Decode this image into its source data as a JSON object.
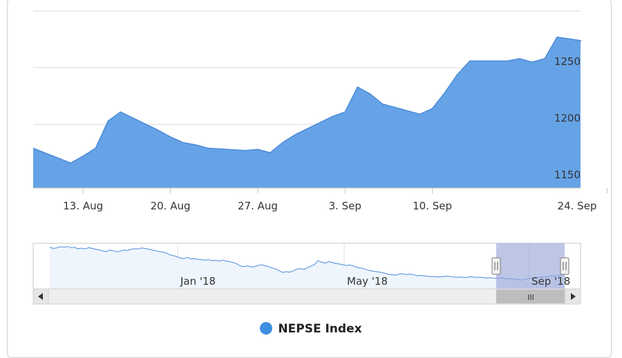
{
  "colors": {
    "series_fill": "#66a3e6",
    "series_line": "#4a8ad8",
    "navigator_fill": "#eef5fc",
    "navigator_line": "#4a8ad8",
    "mask": "#9aa8d9"
  },
  "chart_data": {
    "type": "area",
    "title": "",
    "xlabel": "",
    "ylabel": "",
    "y_axis_position": "right",
    "grid": true,
    "ylim": [
      1150,
      1260
    ],
    "ytick_labels": [
      "1150",
      "1200",
      "1250"
    ],
    "xtick_labels": [
      "13. Aug",
      "20. Aug",
      "27. Aug",
      "3. Sep",
      "10. Sep",
      "24. Sep"
    ],
    "series": [
      {
        "name": "NEPSE Index",
        "x": [
          "2018-08-09",
          "2018-08-12",
          "2018-08-13",
          "2018-08-14",
          "2018-08-15",
          "2018-08-16",
          "2018-08-19",
          "2018-08-20",
          "2018-08-21",
          "2018-08-22",
          "2018-08-23",
          "2018-08-26",
          "2018-08-27",
          "2018-08-28",
          "2018-08-29",
          "2018-08-30",
          "2018-09-02",
          "2018-09-03",
          "2018-09-04",
          "2018-09-05",
          "2018-09-06",
          "2018-09-09",
          "2018-09-10",
          "2018-09-11",
          "2018-09-12",
          "2018-09-13",
          "2018-09-16",
          "2018-09-17",
          "2018-09-18",
          "2018-09-19",
          "2018-09-20",
          "2018-09-23",
          "2018-09-24",
          "2018-09-25"
        ],
        "values": [
          1179,
          1166,
          1172,
          1179,
          1203,
          1211,
          1195,
          1189,
          1184,
          1182,
          1179,
          1177,
          1178,
          1175,
          1184,
          1191,
          1207,
          1211,
          1233,
          1227,
          1218,
          1209,
          1214,
          1228,
          1244,
          1256,
          1256,
          1258,
          1255,
          1258,
          1277,
          1274,
          1274,
          1273
        ]
      }
    ],
    "navigator": {
      "tick_labels": [
        "Jan '18",
        "May '18",
        "Sep '18"
      ],
      "values": [
        1580,
        1572,
        1575,
        1585,
        1582,
        1586,
        1578,
        1580,
        1570,
        1574,
        1568,
        1578,
        1572,
        1566,
        1560,
        1553,
        1548,
        1560,
        1555,
        1546,
        1552,
        1560,
        1556,
        1565,
        1570,
        1568,
        1575,
        1572,
        1566,
        1560,
        1555,
        1548,
        1545,
        1538,
        1524,
        1518,
        1510,
        1500,
        1496,
        1505,
        1492,
        1495,
        1490,
        1487,
        1484,
        1488,
        1479,
        1483,
        1478,
        1484,
        1477,
        1472,
        1466,
        1456,
        1440,
        1436,
        1442,
        1434,
        1436,
        1444,
        1450,
        1442,
        1436,
        1425,
        1418,
        1405,
        1392,
        1398,
        1394,
        1405,
        1418,
        1420,
        1415,
        1428,
        1440,
        1452,
        1480,
        1470,
        1462,
        1474,
        1466,
        1460,
        1455,
        1450,
        1444,
        1448,
        1440,
        1430,
        1425,
        1420,
        1410,
        1405,
        1400,
        1396,
        1392,
        1386,
        1378,
        1375,
        1372,
        1380,
        1382,
        1376,
        1380,
        1374,
        1368,
        1370,
        1366,
        1364,
        1360,
        1362,
        1358,
        1360,
        1364,
        1362,
        1360,
        1356,
        1358,
        1356,
        1354,
        1360,
        1358,
        1355,
        1357,
        1352,
        1350,
        1353,
        1348,
        1350,
        1352,
        1346,
        1344,
        1345,
        1340,
        1338,
        1336,
        1344,
        1348,
        1346,
        1352,
        1358,
        1356,
        1360,
        1368,
        1364,
        1370,
        1375,
        1382
      ]
    }
  },
  "scrollbar": {
    "grip_label": "III"
  }
}
